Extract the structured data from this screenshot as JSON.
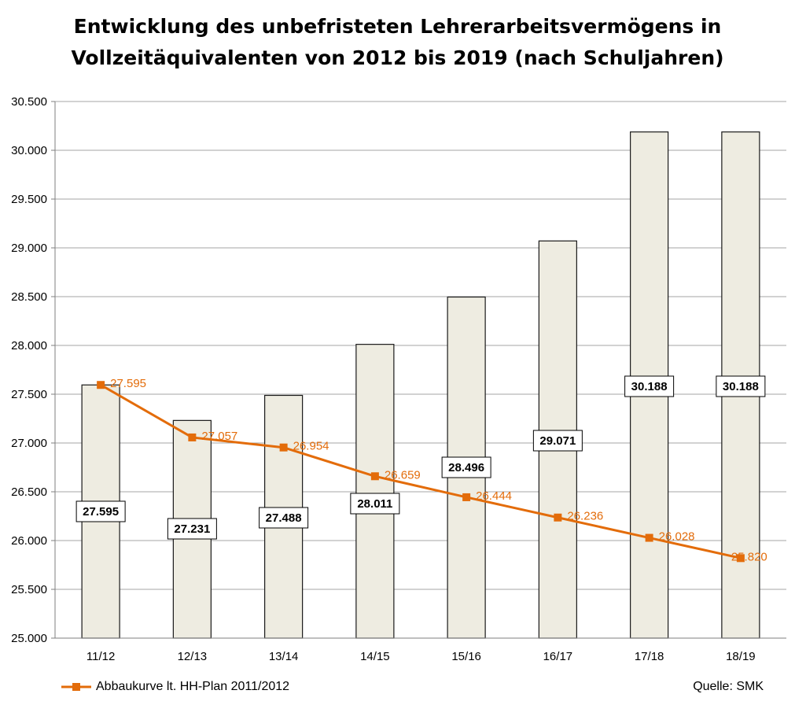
{
  "chart_data": {
    "type": "bar",
    "title_lines": [
      "Entwicklung des unbefristeten Lehrerarbeitsvermögens in",
      "Vollzeitäquivalenten von 2012 bis 2019 (nach Schuljahren)"
    ],
    "categories": [
      "11/12",
      "12/13",
      "13/14",
      "14/15",
      "15/16",
      "16/17",
      "17/18",
      "18/19"
    ],
    "bar_values": [
      27595,
      27231,
      27488,
      28011,
      28496,
      29071,
      30188,
      30188
    ],
    "bar_labels": [
      "27.595",
      "27.231",
      "27.488",
      "28.011",
      "28.496",
      "29.071",
      "30.188",
      "30.188"
    ],
    "line_series": {
      "name": "Abbaukurve lt. HH-Plan 2011/2012",
      "values": [
        27595,
        27057,
        26954,
        26659,
        26444,
        26236,
        26028,
        25820
      ],
      "labels": [
        "27.595",
        "27.057",
        "26.954",
        "26.659",
        "26.444",
        "26.236",
        "26.028",
        "25.820"
      ]
    },
    "y_ticks": [
      25000,
      25500,
      26000,
      26500,
      27000,
      27500,
      28000,
      28500,
      29000,
      29500,
      30000,
      30500
    ],
    "y_tick_labels": [
      "25.000",
      "25.500",
      "26.000",
      "26.500",
      "27.000",
      "27.500",
      "28.000",
      "28.500",
      "29.000",
      "29.500",
      "30.000",
      "30.500"
    ],
    "ylim": [
      25000,
      30500
    ],
    "grid": true,
    "legend_position": "bottom-left",
    "source_note": "Quelle: SMK",
    "colors": {
      "bar_fill": "#EEECE1",
      "bar_stroke": "#1A1A1A",
      "line": "#E36C0A",
      "grid": "#A6A6A6"
    }
  }
}
